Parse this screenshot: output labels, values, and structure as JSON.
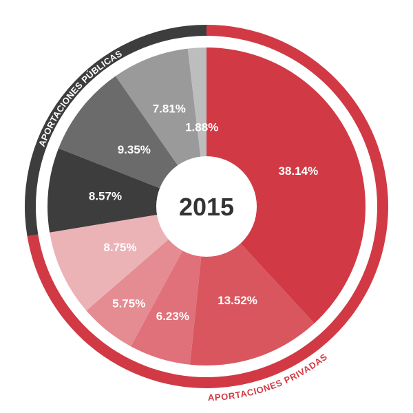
{
  "chart_data": {
    "type": "pie",
    "center_label": "2015",
    "slices": [
      {
        "value": 38.14,
        "label": "38.14%",
        "color": "#d13a45",
        "group": 0
      },
      {
        "value": 13.52,
        "label": "13.52%",
        "color": "#d9565f",
        "group": 0
      },
      {
        "value": 6.23,
        "label": "6.23%",
        "color": "#e07079",
        "group": 0
      },
      {
        "value": 5.75,
        "label": "5.75%",
        "color": "#e58b92",
        "group": 0
      },
      {
        "value": 8.75,
        "label": "8.75%",
        "color": "#ecb3b7",
        "group": 0
      },
      {
        "value": 8.57,
        "label": "8.57%",
        "color": "#3d3d3d",
        "group": 1
      },
      {
        "value": 9.35,
        "label": "9.35%",
        "color": "#6b6b6b",
        "group": 1
      },
      {
        "value": 7.81,
        "label": "7.81%",
        "color": "#9a9a9a",
        "group": 1
      },
      {
        "value": 1.88,
        "label": "1.88%",
        "color": "#bdbdbd",
        "group": 1
      }
    ],
    "groups": [
      {
        "name": "APORTACIONES PRIVADAS",
        "color": "#d13a45",
        "text_color": "#d13a45"
      },
      {
        "name": "APORTACIONES PÚBLICAS",
        "color": "#3d3d3d",
        "text_color": "#3d3d3d"
      }
    ]
  }
}
